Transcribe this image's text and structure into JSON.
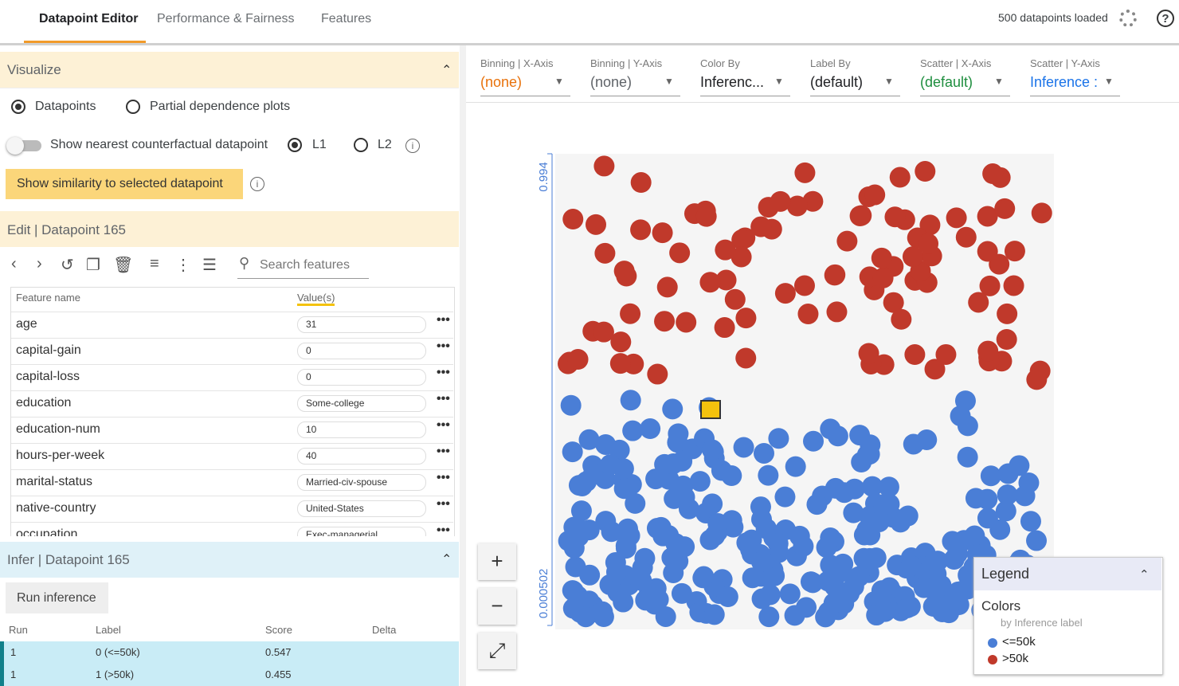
{
  "tabs": [
    "Datapoint Editor",
    "Performance & Fairness",
    "Features"
  ],
  "status": "500 datapoints loaded",
  "visualize": {
    "title": "Visualize",
    "options": [
      "Datapoints",
      "Partial dependence plots"
    ],
    "counterfactual": "Show nearest counterfactual datapoint",
    "norms": [
      "L1",
      "L2"
    ],
    "similarity_button": "Show similarity to selected datapoint"
  },
  "edit": {
    "title": "Edit | Datapoint 165",
    "search_placeholder": "Search features",
    "columns": [
      "Feature name",
      "Value(s)"
    ],
    "rows": [
      [
        "age",
        "31"
      ],
      [
        "capital-gain",
        "0"
      ],
      [
        "capital-loss",
        "0"
      ],
      [
        "education",
        "Some-college"
      ],
      [
        "education-num",
        "10"
      ],
      [
        "hours-per-week",
        "40"
      ],
      [
        "marital-status",
        "Married-civ-spouse"
      ],
      [
        "native-country",
        "United-States"
      ],
      [
        "occupation",
        "Exec-managerial"
      ]
    ]
  },
  "infer": {
    "title": "Infer | Datapoint 165",
    "button": "Run inference",
    "columns": [
      "Run",
      "Label",
      "Score",
      "Delta"
    ],
    "rows": [
      [
        "1",
        "0 (<=50k)",
        "0.547"
      ],
      [
        "1",
        "1 (>50k)",
        "0.455"
      ]
    ]
  },
  "controls": [
    {
      "label": "Binning | X-Axis",
      "value": "(none)",
      "color": "#e8710a"
    },
    {
      "label": "Binning | Y-Axis",
      "value": "(none)",
      "color": "#5f6368"
    },
    {
      "label": "Color By",
      "value": "Inferenc...",
      "color": "#202124"
    },
    {
      "label": "Label By",
      "value": "(default)",
      "color": "#202124"
    },
    {
      "label": "Scatter | X-Axis",
      "value": "(default)",
      "color": "#1e8e3e"
    },
    {
      "label": "Scatter | Y-Axis",
      "value": "Inference :",
      "color": "#1a73e8"
    }
  ],
  "plot": {
    "y_top": "0.994",
    "y_bottom": "0.000502"
  },
  "legend": {
    "title": "Legend",
    "section": "Colors",
    "subtitle": "by Inference label",
    "items": [
      {
        "label": "<=50k",
        "color": "#4a7ed6"
      },
      {
        "label": ">50k",
        "color": "#c0392b"
      }
    ]
  }
}
